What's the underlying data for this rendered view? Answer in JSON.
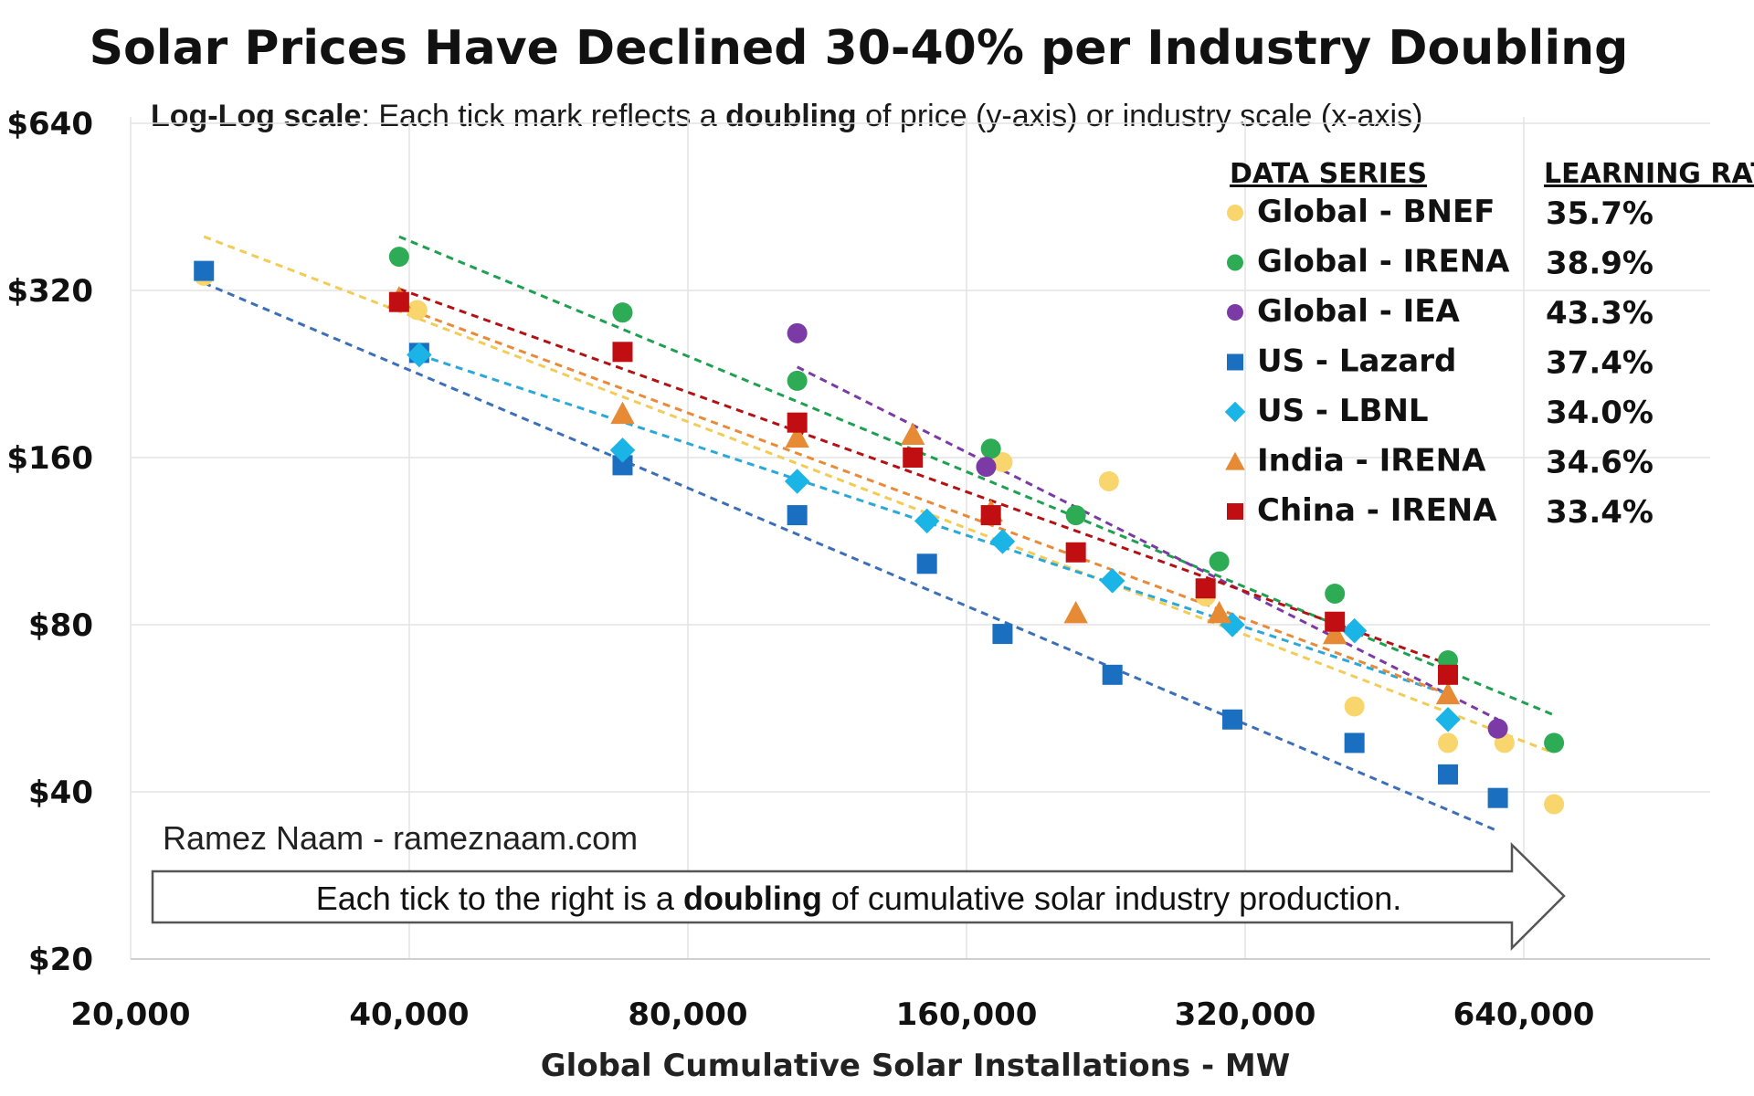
{
  "chart_data": {
    "type": "scatter",
    "title": "Solar Prices Have Declined 30-40% per Industry Doubling",
    "subtitle": {
      "bold_1": "Log-Log scale",
      "text_1": ": Each tick mark reflects a ",
      "bold_2": "doubling",
      "text_2": " of price (y-axis) or industry scale (x-axis)"
    },
    "xlabel": "Global Cumulative Solar Installations - MW",
    "x_scale": "log2",
    "y_scale": "log2",
    "xlim": [
      20000,
      1120000
    ],
    "ylim": [
      20,
      640
    ],
    "x_ticks": [
      {
        "value": 20000,
        "label": "20,000"
      },
      {
        "value": 40000,
        "label": "40,000"
      },
      {
        "value": 80000,
        "label": "80,000"
      },
      {
        "value": 160000,
        "label": "160,000"
      },
      {
        "value": 320000,
        "label": "320,000"
      },
      {
        "value": 640000,
        "label": "640,000"
      }
    ],
    "y_ticks": [
      {
        "value": 20,
        "label": "$20"
      },
      {
        "value": 40,
        "label": "$40"
      },
      {
        "value": 80,
        "label": "$80"
      },
      {
        "value": 160,
        "label": "$160"
      },
      {
        "value": 320,
        "label": "$320"
      },
      {
        "value": 640,
        "label": "$640"
      }
    ],
    "legend": {
      "position": "top-right",
      "header_series": "DATA SERIES",
      "header_rate": "LEARNING RATE"
    },
    "series": [
      {
        "name": "Global - BNEF",
        "learning_rate": "35.7%",
        "color": "#f9d56e",
        "line_color": "#f2cc55",
        "marker": "circle",
        "points": [
          [
            24000,
            340
          ],
          [
            40800,
            295
          ],
          [
            175000,
            157
          ],
          [
            228000,
            145
          ],
          [
            290000,
            90
          ],
          [
            420000,
            57
          ],
          [
            530000,
            49
          ],
          [
            610000,
            49
          ],
          [
            690000,
            38
          ]
        ],
        "trend": [
          [
            24000,
            400
          ],
          [
            690000,
            47
          ]
        ]
      },
      {
        "name": "Global - IRENA",
        "learning_rate": "38.9%",
        "color": "#2eab55",
        "line_color": "#1fa050",
        "marker": "circle",
        "points": [
          [
            39000,
            368
          ],
          [
            68000,
            292
          ],
          [
            105000,
            220
          ],
          [
            170000,
            166
          ],
          [
            210000,
            126
          ],
          [
            300000,
            104
          ],
          [
            400000,
            91
          ],
          [
            530000,
            69
          ],
          [
            690000,
            49
          ]
        ],
        "trend": [
          [
            39000,
            400
          ],
          [
            690000,
            55
          ]
        ]
      },
      {
        "name": "Global - IEA",
        "learning_rate": "43.3%",
        "color": "#7b3aa5",
        "line_color": "#7b3aa5",
        "marker": "circle",
        "points": [
          [
            105000,
            268
          ],
          [
            168000,
            154
          ],
          [
            600000,
            52
          ]
        ],
        "trend": [
          [
            105000,
            233
          ],
          [
            600000,
            54
          ]
        ]
      },
      {
        "name": "US - Lazard",
        "learning_rate": "37.4%",
        "color": "#1b6fc0",
        "line_color": "#3d6fb8",
        "marker": "square",
        "points": [
          [
            24000,
            347
          ],
          [
            41000,
            247
          ],
          [
            68000,
            155
          ],
          [
            105000,
            126
          ],
          [
            145000,
            103
          ],
          [
            175000,
            77
          ],
          [
            230000,
            65
          ],
          [
            310000,
            54
          ],
          [
            420000,
            49
          ],
          [
            530000,
            43
          ],
          [
            600000,
            39
          ]
        ],
        "trend": [
          [
            24000,
            330
          ],
          [
            600000,
            34
          ]
        ]
      },
      {
        "name": "US - LBNL",
        "learning_rate": "34.0%",
        "color": "#1bb4e6",
        "line_color": "#2aa8d8",
        "marker": "diamond",
        "points": [
          [
            41000,
            245
          ],
          [
            68000,
            165
          ],
          [
            105000,
            145
          ],
          [
            145000,
            123
          ],
          [
            175000,
            113
          ],
          [
            230000,
            96
          ],
          [
            310000,
            80
          ],
          [
            420000,
            78
          ],
          [
            530000,
            54
          ]
        ],
        "trend": [
          [
            41000,
            245
          ],
          [
            530000,
            60
          ]
        ]
      },
      {
        "name": "India - IRENA",
        "learning_rate": "34.6%",
        "color": "#e68a35",
        "line_color": "#e98a3a",
        "marker": "triangle",
        "points": [
          [
            39000,
            310
          ],
          [
            68000,
            192
          ],
          [
            105000,
            174
          ],
          [
            140000,
            176
          ],
          [
            170000,
            128
          ],
          [
            210000,
            84
          ],
          [
            300000,
            84
          ],
          [
            400000,
            77
          ],
          [
            530000,
            60
          ]
        ],
        "trend": [
          [
            39000,
            300
          ],
          [
            530000,
            60
          ]
        ]
      },
      {
        "name": "China - IRENA",
        "learning_rate": "33.4%",
        "color": "#c00e12",
        "line_color": "#b31215",
        "marker": "square",
        "points": [
          [
            39000,
            305
          ],
          [
            68000,
            248
          ],
          [
            105000,
            185
          ],
          [
            140000,
            160
          ],
          [
            170000,
            126
          ],
          [
            210000,
            108
          ],
          [
            290000,
            93
          ],
          [
            400000,
            81
          ],
          [
            530000,
            65
          ]
        ],
        "trend": [
          [
            39000,
            322
          ],
          [
            530000,
            68
          ]
        ]
      }
    ],
    "annotations": {
      "credit": "Ramez Naam - rameznaam.com",
      "arrow_text_1": "Each tick to the right is a ",
      "arrow_bold": "doubling",
      "arrow_text_2": " of cumulative solar industry production."
    }
  }
}
